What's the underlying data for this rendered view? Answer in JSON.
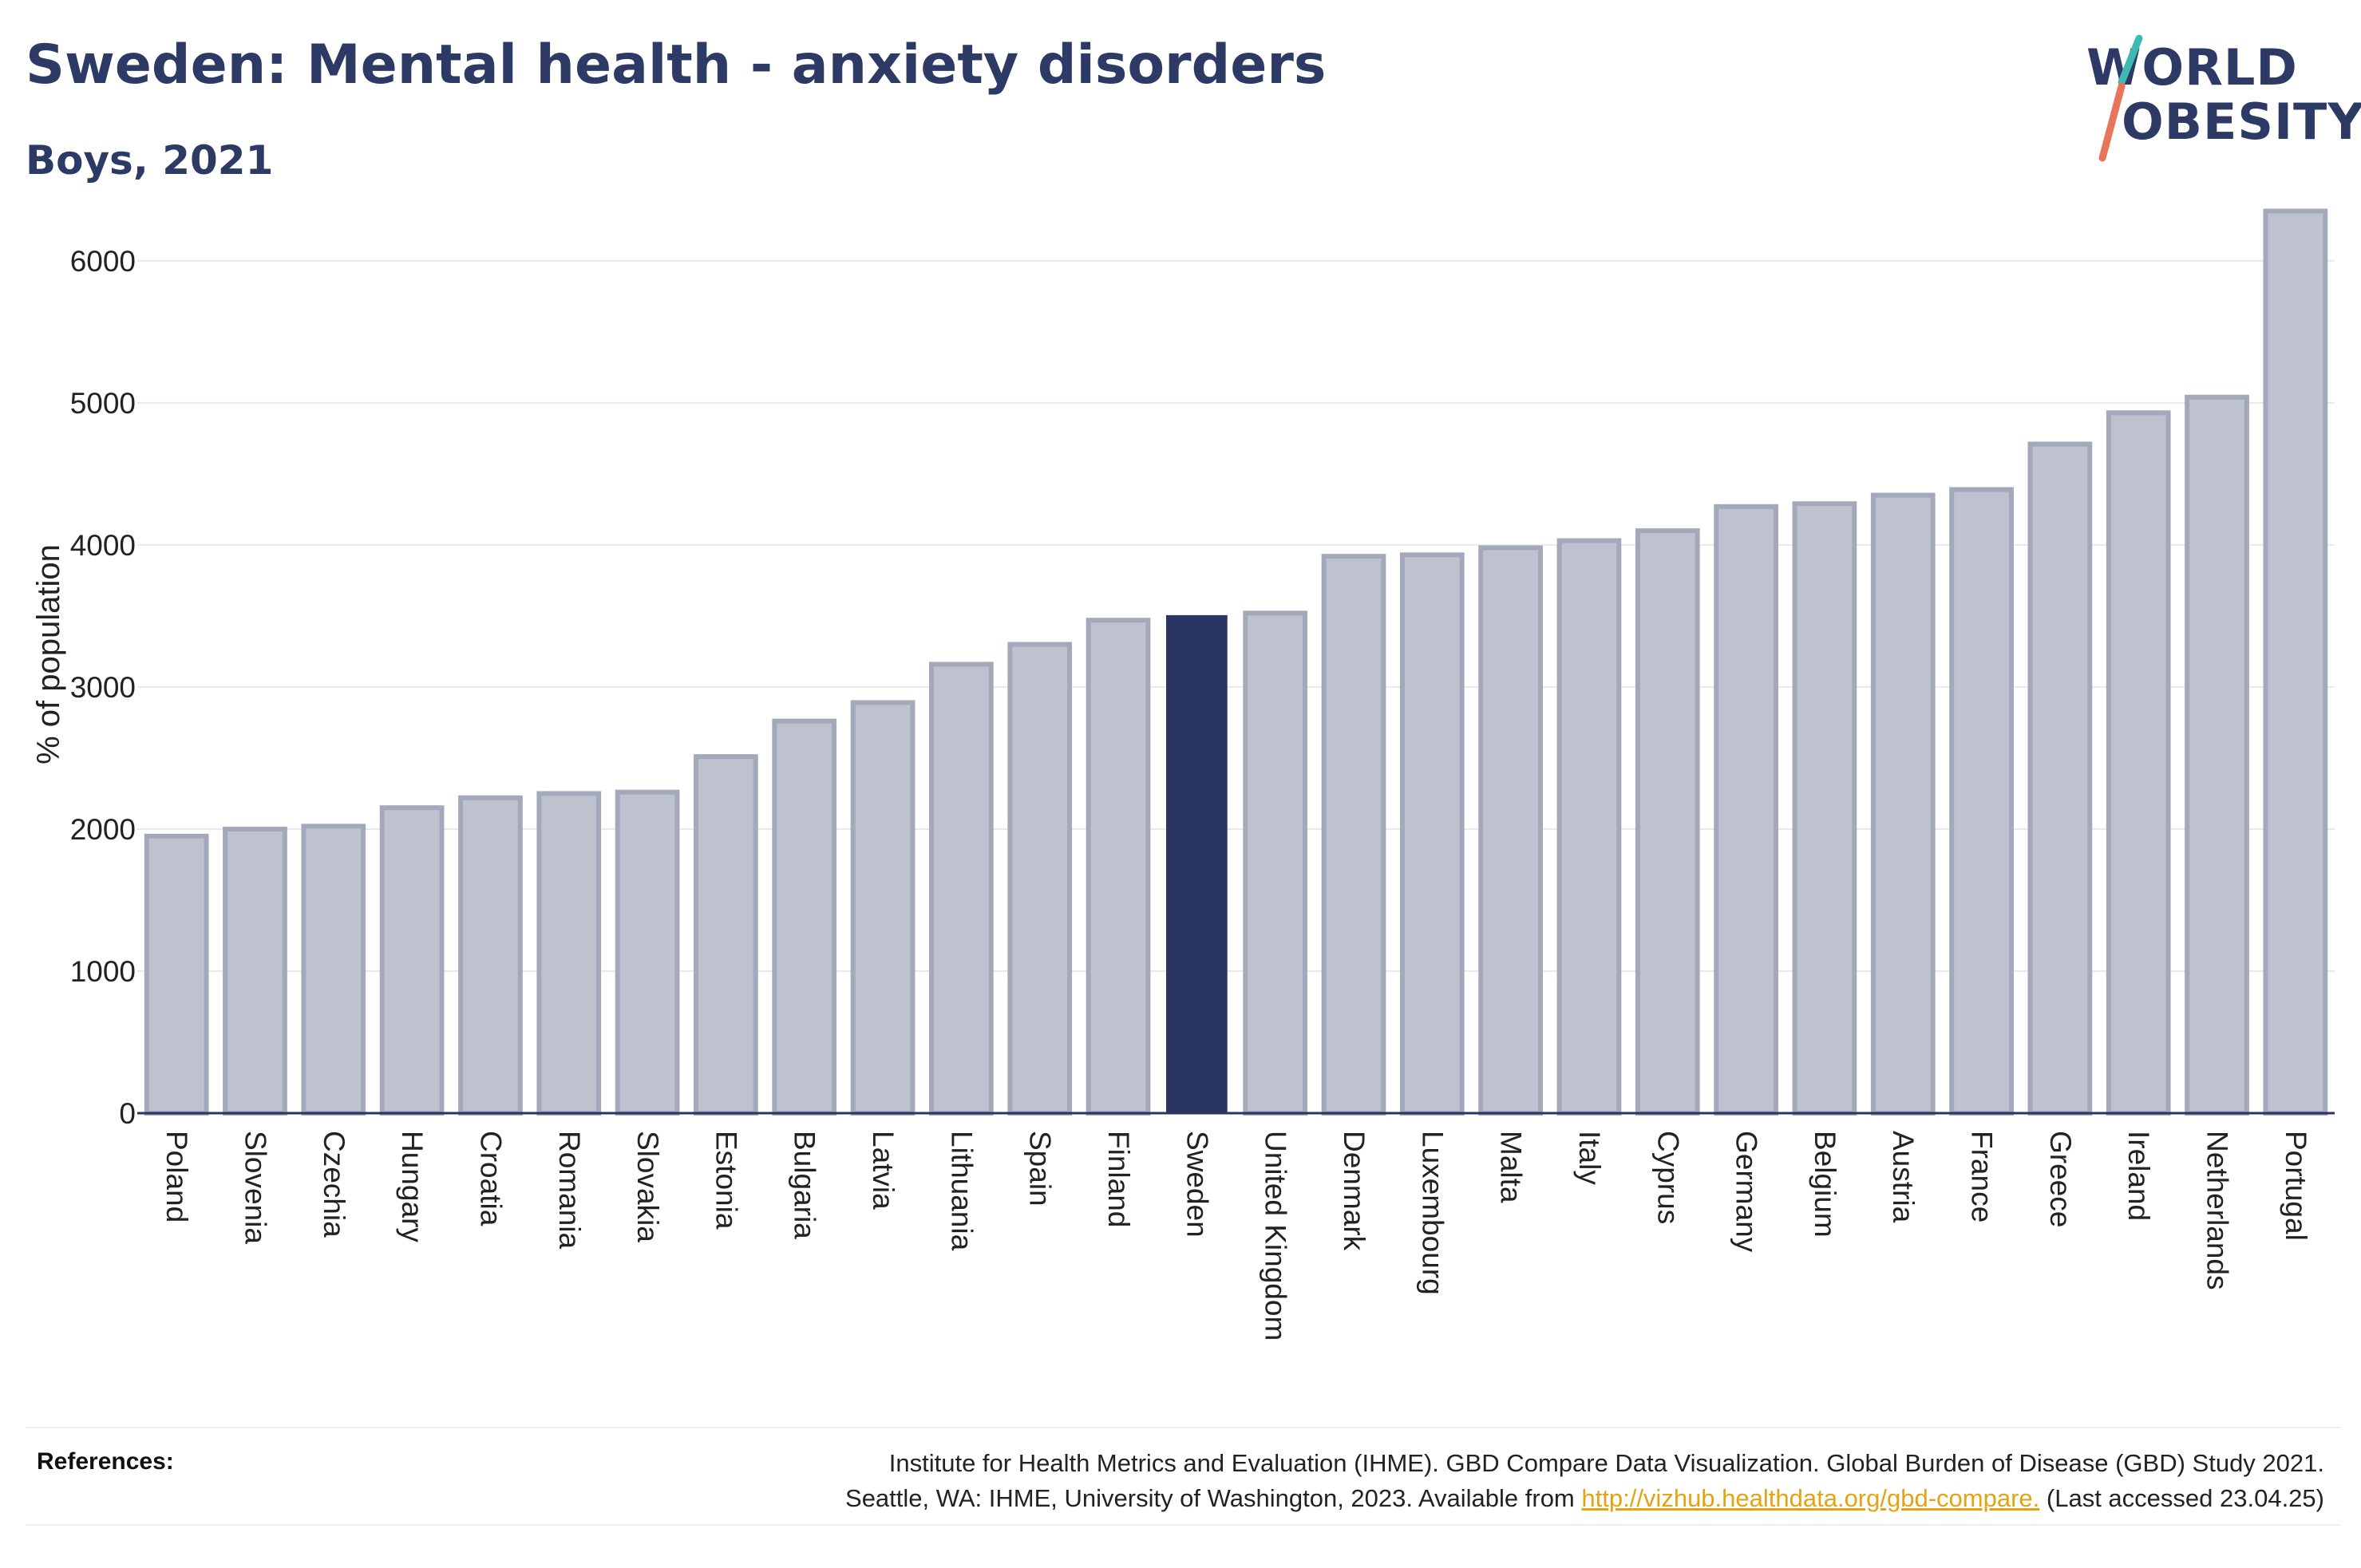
{
  "header": {
    "title": "Sweden: Mental health - anxiety disorders",
    "subtitle": "Boys, 2021"
  },
  "logo": {
    "line1": "WORLD",
    "line2": "OBESITY"
  },
  "colors": {
    "highlight": "#2b3561",
    "bar_fill": "#bec2cf",
    "bar_stroke": "#a3a8bb",
    "axis": "#2b3561",
    "grid": "#e8e9ed",
    "text": "#222222"
  },
  "chart_data": {
    "type": "bar",
    "ylabel": "% of population",
    "xlabel": "",
    "ylim": [
      0,
      6600
    ],
    "yticks": [
      0,
      1000,
      2000,
      3000,
      4000,
      5000,
      6000
    ],
    "grid": true,
    "highlight": "Sweden",
    "categories": [
      "Poland",
      "Slovenia",
      "Czechia",
      "Hungary",
      "Croatia",
      "Romania",
      "Slovakia",
      "Estonia",
      "Bulgaria",
      "Latvia",
      "Lithuania",
      "Spain",
      "Finland",
      "Sweden",
      "United Kingdom",
      "Denmark",
      "Luxembourg",
      "Malta",
      "Italy",
      "Cyprus",
      "Germany",
      "Belgium",
      "Austria",
      "France",
      "Greece",
      "Ireland",
      "Netherlands",
      "Portugal"
    ],
    "values": [
      1950,
      2000,
      2020,
      2150,
      2220,
      2250,
      2260,
      2510,
      2760,
      2890,
      3160,
      3300,
      3470,
      3500,
      3520,
      3920,
      3930,
      3980,
      4030,
      4100,
      4270,
      4290,
      4350,
      4390,
      4710,
      4930,
      5040,
      6350
    ]
  },
  "references": {
    "label": "References:",
    "line1": "Institute for Health Metrics and Evaluation (IHME). GBD Compare Data Visualization. Global Burden of Disease (GBD) Study 2021.",
    "line2_prefix": "Seattle, WA: IHME, University of Washington, 2023. Available from",
    "link_text": "http://vizhub.healthdata.org/gbd-compare.",
    "line2_suffix": "(Last accessed 23.04.25)"
  }
}
